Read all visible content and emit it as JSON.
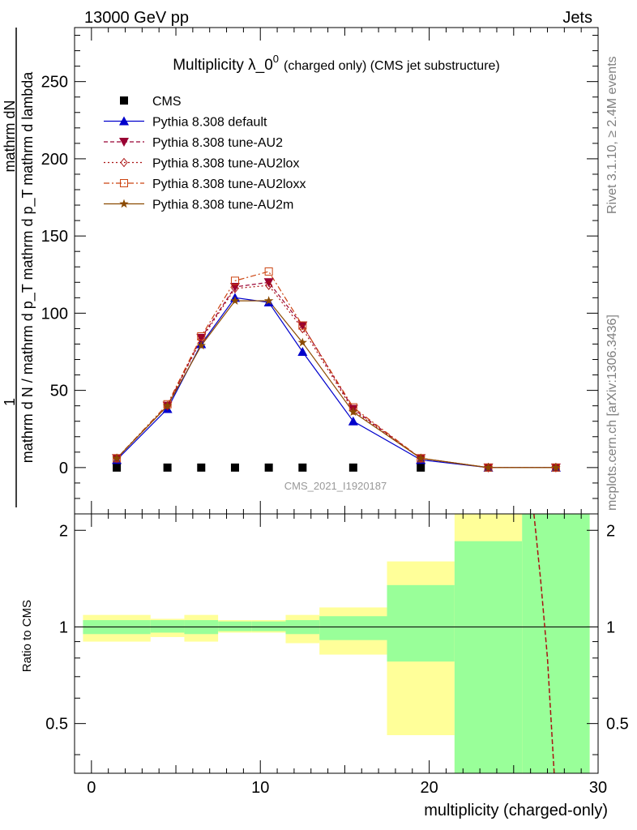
{
  "header": {
    "left": "13000 GeV pp",
    "right": "Jets"
  },
  "side": {
    "rivet": "Rivet 3.1.10, ≥ 2.4M events",
    "mcplots": "mcplots.cern.ch [arXiv:1306.3436]"
  },
  "chart_data": [
    {
      "type": "line",
      "title_main": "Multiplicity λ_0",
      "title_sup": "0",
      "title_rest": "(charged only) (CMS jet substructure)",
      "watermark": "CMS_2021_I1920187",
      "ylabel": {
        "numerator_1": "1",
        "numerator_2": "mathrm dN",
        "denominator": "mathrm d N / mathrm d p_T mathrm d p_T mathrm d lambda"
      },
      "ylim": [
        -30,
        285
      ],
      "yticks": [
        0,
        50,
        100,
        150,
        200,
        250
      ],
      "xlim": [
        -1,
        30
      ],
      "xticks": [
        0,
        10,
        20,
        30
      ],
      "legend_position": "top-left",
      "series": [
        {
          "name": "CMS",
          "color": "#000000",
          "marker": "square",
          "line": "none",
          "x": [
            1.5,
            4.5,
            6.5,
            8.5,
            10.5,
            12.5,
            15.5,
            19.5
          ],
          "values": [
            0,
            0,
            0,
            0,
            0,
            0,
            0,
            0
          ]
        },
        {
          "name": "Pythia 8.308 default",
          "color": "#0000cc",
          "marker": "triangle",
          "line": "solid",
          "x": [
            1.5,
            4.5,
            6.5,
            8.5,
            10.5,
            12.5,
            15.5,
            19.5,
            23.5,
            27.5
          ],
          "values": [
            5,
            38,
            80,
            110,
            107,
            75,
            30,
            5,
            0,
            0
          ]
        },
        {
          "name": "Pythia 8.308 tune-AU2",
          "color": "#990033",
          "marker": "triangle-down",
          "line": "dashed",
          "x": [
            1.5,
            4.5,
            6.5,
            8.5,
            10.5,
            12.5,
            15.5,
            19.5,
            23.5,
            27.5
          ],
          "values": [
            6,
            40,
            84,
            117,
            120,
            92,
            38,
            6,
            0,
            0
          ]
        },
        {
          "name": "Pythia 8.308 tune-AU2lox",
          "color": "#aa1111",
          "marker": "diamond",
          "line": "dotted",
          "x": [
            1.5,
            4.5,
            6.5,
            8.5,
            10.5,
            12.5,
            15.5,
            19.5,
            23.5,
            27.5
          ],
          "values": [
            6,
            40,
            83,
            116,
            118,
            90,
            37,
            6,
            0,
            0
          ]
        },
        {
          "name": "Pythia 8.308 tune-AU2loxx",
          "color": "#cc4411",
          "marker": "square-open",
          "line": "dashdot",
          "x": [
            1.5,
            4.5,
            6.5,
            8.5,
            10.5,
            12.5,
            15.5,
            19.5,
            23.5,
            27.5
          ],
          "values": [
            6,
            41,
            85,
            121,
            127,
            92,
            39,
            6,
            0,
            0
          ]
        },
        {
          "name": "Pythia 8.308 tune-AU2m",
          "color": "#8b4a00",
          "marker": "star",
          "line": "solid",
          "x": [
            1.5,
            4.5,
            6.5,
            8.5,
            10.5,
            12.5,
            15.5,
            19.5,
            23.5,
            27.5
          ],
          "values": [
            6,
            40,
            79,
            108,
            108,
            81,
            36,
            6,
            0,
            0
          ]
        }
      ]
    },
    {
      "type": "area",
      "ylabel": "Ratio to CMS",
      "xlabel": "multiplicity (charged-only)",
      "ylim": [
        0.35,
        2.25
      ],
      "yticks": [
        0.5,
        1,
        2
      ],
      "xlim": [
        -1,
        30
      ],
      "xticks": [
        0,
        10,
        20,
        30
      ],
      "reference": 1,
      "bands": [
        {
          "x": [
            -0.5,
            3.5
          ],
          "green": [
            0.95,
            1.05
          ],
          "yellow": [
            0.9,
            1.09
          ]
        },
        {
          "x": [
            3.5,
            5.5
          ],
          "green": [
            0.96,
            1.05
          ],
          "yellow": [
            0.93,
            1.06
          ]
        },
        {
          "x": [
            5.5,
            7.5
          ],
          "green": [
            0.95,
            1.05
          ],
          "yellow": [
            0.9,
            1.09
          ]
        },
        {
          "x": [
            7.5,
            9.5
          ],
          "green": [
            0.97,
            1.04
          ],
          "yellow": [
            0.96,
            1.05
          ]
        },
        {
          "x": [
            9.5,
            11.5
          ],
          "green": [
            0.97,
            1.04
          ],
          "yellow": [
            0.96,
            1.05
          ]
        },
        {
          "x": [
            11.5,
            13.5
          ],
          "green": [
            0.95,
            1.05
          ],
          "yellow": [
            0.89,
            1.09
          ]
        },
        {
          "x": [
            13.5,
            17.5
          ],
          "green": [
            0.91,
            1.08
          ],
          "yellow": [
            0.82,
            1.15
          ]
        },
        {
          "x": [
            17.5,
            21.5
          ],
          "green": [
            0.78,
            1.35
          ],
          "yellow": [
            0.46,
            1.6
          ]
        },
        {
          "x": [
            21.5,
            25.5
          ],
          "green": [
            0.35,
            1.85
          ],
          "yellow": [
            0.35,
            2.25
          ]
        },
        {
          "x": [
            25.5,
            29.5
          ],
          "green": [
            0.35,
            2.25
          ],
          "yellow": [
            0.35,
            2.25
          ]
        }
      ],
      "curve": {
        "color": "#aa1111",
        "x": [
          26.2,
          26.6,
          27.0,
          27.4
        ],
        "values": [
          2.25,
          1.4,
          0.8,
          0.35
        ]
      }
    }
  ]
}
